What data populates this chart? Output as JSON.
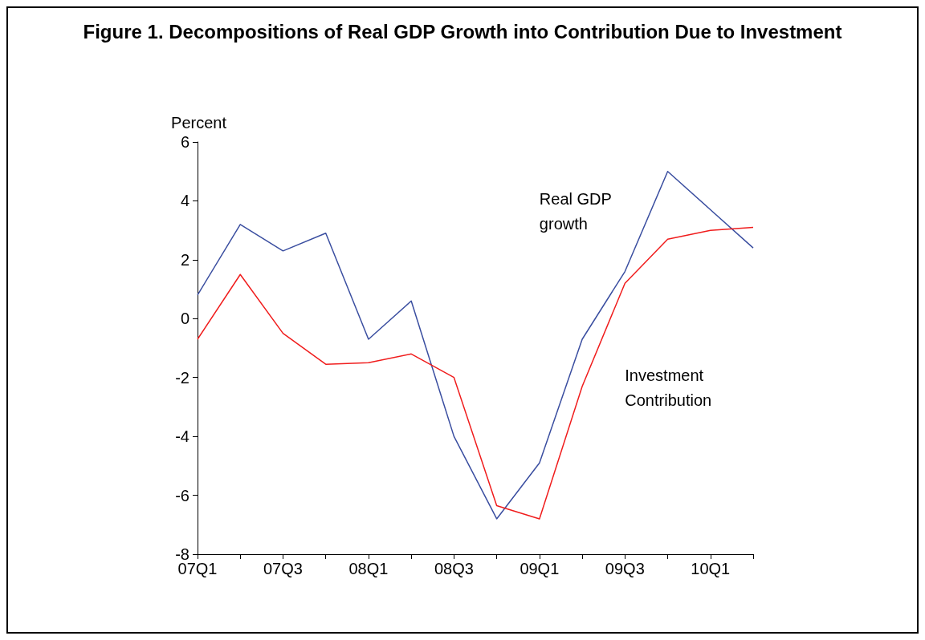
{
  "chart_data": {
    "type": "line",
    "title": "Figure 1. Decompositions of Real GDP Growth into Contribution Due to Investment",
    "ylabel": "Percent",
    "categories": [
      "07Q1",
      null,
      "07Q3",
      null,
      "08Q1",
      null,
      "08Q3",
      null,
      "09Q1",
      null,
      "09Q3",
      null,
      "10Q1",
      null
    ],
    "series": [
      {
        "name": "Real GDP growth",
        "color": "#3a4ea0",
        "values": [
          0.8,
          3.2,
          2.3,
          2.9,
          -0.7,
          0.6,
          -4.0,
          -6.8,
          -4.9,
          -0.7,
          1.6,
          5.0,
          3.7,
          2.4
        ]
      },
      {
        "name": "Investment Contribution",
        "color": "#f01c1c",
        "values": [
          -0.7,
          1.5,
          -0.5,
          -1.55,
          -1.5,
          -1.2,
          -2.0,
          -6.35,
          -6.8,
          -2.3,
          1.2,
          2.7,
          3.0,
          3.1
        ]
      }
    ],
    "ylim": [
      -8,
      6
    ],
    "yticks": [
      -8,
      -6,
      -4,
      -2,
      0,
      2,
      4,
      6
    ],
    "grid": false,
    "legend": false,
    "marker": "none",
    "line_style": "solid"
  }
}
